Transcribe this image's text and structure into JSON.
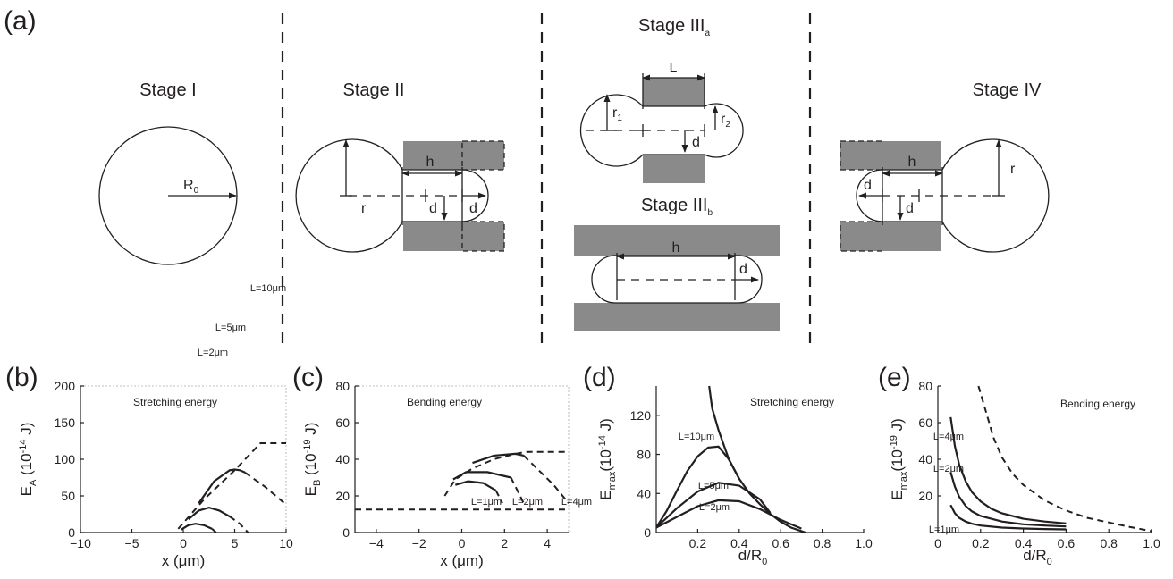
{
  "panel_labels": {
    "a": "(a)",
    "b": "(b)",
    "c": "(c)",
    "d": "(d)",
    "e": "(e)"
  },
  "schematic": {
    "stage1": {
      "title": "Stage I",
      "radius_label": "R",
      "radius_sub": "0"
    },
    "stage2": {
      "title": "Stage II",
      "h": "h",
      "r": "r",
      "d1": "d",
      "d2": "d"
    },
    "stage3a": {
      "title": "Stage III",
      "title_sub": "a",
      "L": "L",
      "r1": "r",
      "r1_sub": "1",
      "r2": "r",
      "r2_sub": "2",
      "d": "d"
    },
    "stage3b": {
      "title": "Stage III",
      "title_sub": "b",
      "h": "h",
      "d": "d"
    },
    "stage4": {
      "title": "Stage IV",
      "h": "h",
      "r": "r",
      "d1": "d",
      "d2": "d"
    }
  },
  "chart_data": [
    {
      "id": "b",
      "type": "line",
      "annotation": "Stretching energy",
      "xlabel": "x (μm)",
      "ylabel": {
        "main": "E",
        "sub": "A",
        "unit_pre": " (10",
        "exp": "-14",
        "unit_post": " J)"
      },
      "xlim": [
        -10,
        10
      ],
      "ylim": [
        0,
        200
      ],
      "xticks": [
        "−10",
        "−5",
        "0",
        "5",
        "10"
      ],
      "yticks": [
        "0",
        "50",
        "100",
        "150",
        "200"
      ],
      "series": [
        {
          "name": "L=10μm",
          "style": "dashed",
          "x": [
            -0.5,
            2,
            5,
            7.5,
            10
          ],
          "y": [
            5,
            45,
            85,
            122,
            122
          ]
        },
        {
          "name": "L=10μm",
          "style": "solid",
          "x": [
            1.5,
            3,
            4.5,
            5,
            5.5,
            6
          ],
          "y": [
            40,
            70,
            85,
            86,
            85,
            82
          ]
        },
        {
          "name": "L=10μm",
          "style": "dashed",
          "x": [
            6,
            8,
            10
          ],
          "y": [
            82,
            62,
            38
          ]
        },
        {
          "name": "L=5μm",
          "style": "solid",
          "x": [
            0.5,
            1.5,
            2.5,
            3.5,
            4.5
          ],
          "y": [
            18,
            30,
            34,
            30,
            22
          ]
        },
        {
          "name": "L=5μm",
          "style": "dashed",
          "x": [
            4.5,
            5.5,
            6.3
          ],
          "y": [
            22,
            12,
            0
          ]
        },
        {
          "name": "L=2μm",
          "style": "solid",
          "x": [
            -0.2,
            0.5,
            1.2,
            2,
            2.8
          ],
          "y": [
            4,
            10,
            12,
            10,
            5
          ]
        },
        {
          "name": "L=2μm",
          "style": "dashed",
          "x": [
            2.8,
            3.2
          ],
          "y": [
            5,
            0
          ]
        }
      ],
      "curve_labels": [
        "L=10μm",
        "L=5μm",
        "L=2μm"
      ]
    },
    {
      "id": "c",
      "type": "line",
      "annotation": "Bending energy",
      "xlabel": "x (μm)",
      "ylabel": {
        "main": "E",
        "sub": "B",
        "unit_pre": " (10",
        "exp": "-19",
        "unit_post": " J)"
      },
      "xlim": [
        -5,
        5
      ],
      "ylim": [
        0,
        80
      ],
      "xticks": [
        "−4",
        "−2",
        "0",
        "2",
        "4"
      ],
      "yticks": [
        "0",
        "20",
        "40",
        "60",
        "80"
      ],
      "series": [
        {
          "name": "baseline",
          "style": "dashed",
          "x": [
            -5,
            5
          ],
          "y": [
            12.6,
            12.6
          ]
        },
        {
          "name": "envelope",
          "style": "dashed",
          "x": [
            -0.8,
            -0.3,
            0.5,
            1.5,
            2.5,
            3,
            5
          ],
          "y": [
            20,
            29,
            35,
            40,
            43,
            44,
            44
          ]
        },
        {
          "name": "L=1μm",
          "style": "solid",
          "x": [
            -0.3,
            0.3,
            1,
            1.6
          ],
          "y": [
            26,
            28,
            27,
            23
          ]
        },
        {
          "name": "L=1μm",
          "style": "dashed",
          "x": [
            1.6,
            1.9
          ],
          "y": [
            23,
            16
          ]
        },
        {
          "name": "L=2μm",
          "style": "solid",
          "x": [
            -0.4,
            0.2,
            1.2,
            2.3
          ],
          "y": [
            29,
            33,
            33,
            30
          ]
        },
        {
          "name": "L=2μm",
          "style": "dashed",
          "x": [
            2.3,
            2.9
          ],
          "y": [
            30,
            16
          ]
        },
        {
          "name": "L=4μm",
          "style": "solid",
          "x": [
            0.5,
            1.5,
            2.5,
            2.9
          ],
          "y": [
            38,
            42,
            43,
            42
          ]
        },
        {
          "name": "L=4μm",
          "style": "dashed",
          "x": [
            2.9,
            4.3,
            5
          ],
          "y": [
            42,
            26,
            16
          ]
        }
      ],
      "curve_labels": [
        "L=1μm",
        "L=2μm",
        "L=4μm"
      ]
    },
    {
      "id": "d",
      "type": "line",
      "annotation": "Stretching energy",
      "xlabel": {
        "main": "d/R",
        "sub": "0"
      },
      "ylabel": {
        "main": "E",
        "sub": "max",
        "unit_pre": "(10",
        "exp": "-14",
        "unit_post": " J)"
      },
      "xlim": [
        0,
        1
      ],
      "ylim": [
        0,
        150
      ],
      "xticks": [
        "0.2",
        "0.4",
        "0.6",
        "0.8",
        "1.0"
      ],
      "yticks": [
        "0",
        "40",
        "80",
        "120"
      ],
      "series": [
        {
          "name": "envelope",
          "style": "solid",
          "x": [
            0.255,
            0.27,
            0.3,
            0.35,
            0.4,
            0.45,
            0.5,
            0.55,
            0.6,
            0.65,
            0.7,
            0.72
          ],
          "y": [
            150,
            127,
            105,
            75,
            55,
            40,
            29,
            19,
            11,
            5,
            1.5,
            0
          ]
        },
        {
          "name": "L=10μm",
          "style": "solid",
          "x": [
            0,
            0.05,
            0.1,
            0.15,
            0.2,
            0.25,
            0.3,
            0.35,
            0.4
          ],
          "y": [
            5,
            22,
            43,
            63,
            78,
            87,
            88,
            75,
            55
          ]
        },
        {
          "name": "L=5μm",
          "style": "solid",
          "x": [
            0,
            0.1,
            0.2,
            0.3,
            0.4,
            0.5,
            0.55
          ],
          "y": [
            5,
            25,
            42,
            51,
            48,
            34,
            20
          ]
        },
        {
          "name": "L=2μm",
          "style": "solid",
          "x": [
            0,
            0.1,
            0.2,
            0.3,
            0.4,
            0.5,
            0.6,
            0.7
          ],
          "y": [
            5,
            16,
            27,
            33,
            32,
            24,
            13,
            4
          ]
        }
      ],
      "curve_labels": [
        "L=10μm",
        "L=5μm",
        "L=2μm"
      ]
    },
    {
      "id": "e",
      "type": "line",
      "annotation": "Bending energy",
      "xlabel": {
        "main": "d/R",
        "sub": "0"
      },
      "ylabel": {
        "main": "E",
        "sub": "max",
        "unit_pre": "(10",
        "exp": "-19",
        "unit_post": " J)"
      },
      "xlim": [
        0,
        1
      ],
      "ylim": [
        0,
        80
      ],
      "xticks": [
        "0",
        "0.2",
        "0.4",
        "0.6",
        "0.8",
        "1.0"
      ],
      "yticks": [
        "20",
        "40",
        "60",
        "80"
      ],
      "series": [
        {
          "name": "limit",
          "style": "dashed",
          "x": [
            0.19,
            0.22,
            0.26,
            0.3,
            0.35,
            0.4,
            0.5,
            0.6,
            0.7,
            0.8,
            0.9,
            1.0
          ],
          "y": [
            80,
            68,
            52,
            41,
            32,
            26,
            17.5,
            12,
            8,
            5.5,
            3,
            0.8
          ]
        },
        {
          "name": "L=4μm",
          "style": "solid",
          "x": [
            0.06,
            0.08,
            0.1,
            0.13,
            0.16,
            0.2,
            0.25,
            0.3,
            0.4,
            0.5,
            0.6
          ],
          "y": [
            63,
            47,
            37,
            28,
            22,
            17,
            13,
            10.5,
            7.5,
            6,
            5
          ]
        },
        {
          "name": "L=2μm",
          "style": "solid",
          "x": [
            0.06,
            0.08,
            0.1,
            0.13,
            0.16,
            0.2,
            0.3,
            0.4,
            0.5,
            0.6
          ],
          "y": [
            33,
            25,
            19.5,
            14.5,
            11.5,
            9,
            6,
            4.5,
            3.8,
            3.3
          ]
        },
        {
          "name": "L=1μm",
          "style": "solid",
          "x": [
            0.06,
            0.08,
            0.1,
            0.13,
            0.16,
            0.2,
            0.3,
            0.4,
            0.5,
            0.6
          ],
          "y": [
            15,
            10.5,
            8,
            6,
            4.8,
            3.8,
            2.7,
            2.2,
            1.9,
            1.7
          ]
        }
      ],
      "curve_labels": [
        "L=4μm",
        "L=2μm",
        "L=1μm"
      ]
    }
  ]
}
